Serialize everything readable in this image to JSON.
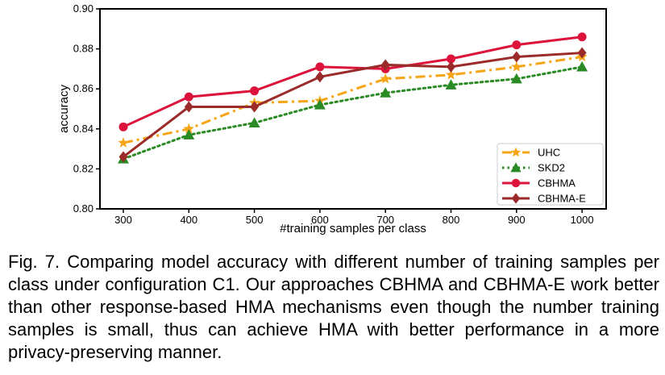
{
  "chart_data": {
    "type": "line",
    "title": "",
    "xlabel": "#training samples per class",
    "ylabel": "accuracy",
    "x": [
      300,
      400,
      500,
      600,
      700,
      800,
      900,
      1000
    ],
    "ylim": [
      0.8,
      0.9
    ],
    "yticks": [
      "0.80",
      "0.82",
      "0.84",
      "0.86",
      "0.88",
      "0.90"
    ],
    "xticks": [
      "300",
      "400",
      "500",
      "600",
      "700",
      "800",
      "900",
      "1000"
    ],
    "legend_position": "lower-right",
    "series": [
      {
        "name": "UHC",
        "color": "#f5a516",
        "marker": "star",
        "linestyle": "dashdot",
        "values": [
          0.833,
          0.84,
          0.853,
          0.854,
          0.865,
          0.867,
          0.871,
          0.876
        ]
      },
      {
        "name": "SKD2",
        "color": "#2a8a24",
        "marker": "triangle",
        "linestyle": "dotted",
        "values": [
          0.825,
          0.837,
          0.843,
          0.852,
          0.858,
          0.862,
          0.865,
          0.871
        ]
      },
      {
        "name": "CBHMA",
        "color": "#dc143c",
        "marker": "circle",
        "linestyle": "solid",
        "values": [
          0.841,
          0.856,
          0.859,
          0.871,
          0.87,
          0.875,
          0.882,
          0.886
        ]
      },
      {
        "name": "CBHMA-E",
        "color": "#9b2a2a",
        "marker": "diamond",
        "linestyle": "solid",
        "values": [
          0.826,
          0.851,
          0.851,
          0.866,
          0.872,
          0.871,
          0.876,
          0.878
        ]
      }
    ]
  },
  "caption": "Fig. 7. Comparing model accuracy with different number of training samples per class under configuration C1. Our approaches CBHMA and CBHMA-E work better than other response-based HMA mechanisms even though the number training samples is small, thus can achieve HMA with better performance in a more privacy-preserving manner."
}
